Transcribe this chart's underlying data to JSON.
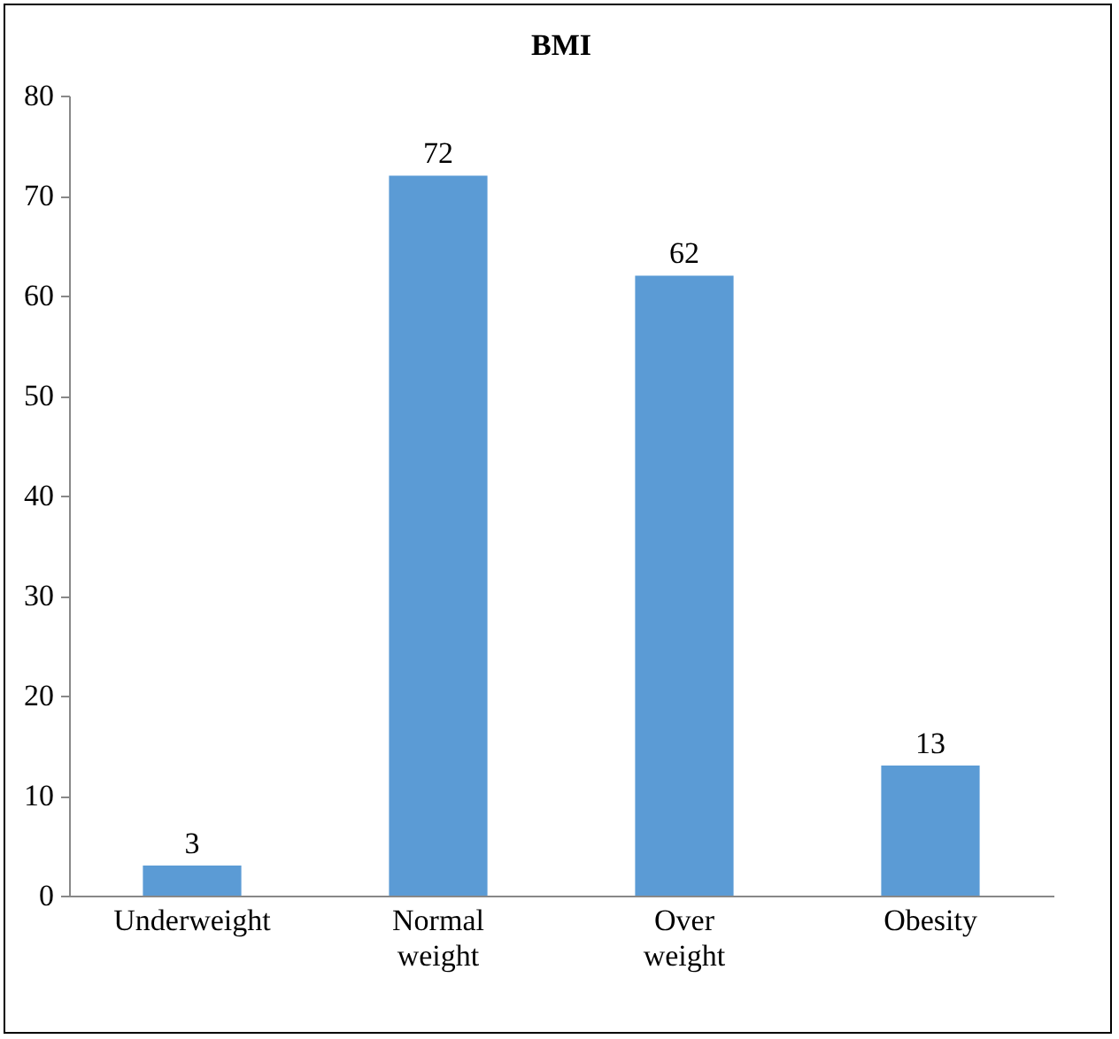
{
  "chart_data": {
    "type": "bar",
    "title": "BMI",
    "categories": [
      "Underweight",
      "Normal weight",
      "Over weight",
      "Obesity"
    ],
    "values": [
      3,
      72,
      62,
      13
    ],
    "color": "#5b9bd5",
    "ylim": [
      0,
      80
    ],
    "yticks": [
      0,
      10,
      20,
      30,
      40,
      50,
      60,
      70,
      80
    ],
    "data_labels": true,
    "grid": false
  }
}
